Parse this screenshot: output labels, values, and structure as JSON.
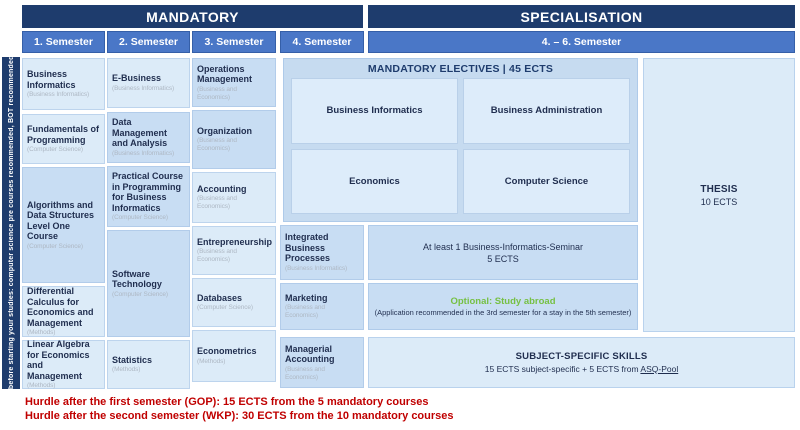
{
  "headers": {
    "mandatory": "MANDATORY",
    "specialisation": "SPECIALISATION"
  },
  "semesters": [
    "1. Semester",
    "2. Semester",
    "3. Semester",
    "4. Semester",
    "4. – 6. Semester"
  ],
  "sidebar_note": "... before starting your studies: computer science pre courses recommended, BOT recommended...",
  "courses": {
    "sem1": [
      {
        "title": "Business Informatics",
        "category": "(Business Informatics)"
      },
      {
        "title": "Fundamentals of Programming",
        "category": "(Computer Science)"
      },
      {
        "title": "Algorithms and Data Structures Level One Course",
        "category": "(Computer Science)"
      },
      {
        "title": "Differential Calculus for Economics and Management",
        "category": "(Methods)"
      },
      {
        "title": "Linear Algebra for Economics and Management",
        "category": "(Methods)"
      }
    ],
    "sem2": [
      {
        "title": "E-Business",
        "category": "(Business Informatics)"
      },
      {
        "title": "Data Management and Analysis",
        "category": "(Business Informatics)"
      },
      {
        "title": "Practical Course in Programming for Business Informatics",
        "category": "(Computer Science)"
      },
      {
        "title": "Software Technology",
        "category": "(Computer Science)"
      },
      {
        "title": "Statistics",
        "category": "(Methods)"
      }
    ],
    "sem3": [
      {
        "title": "Operations Management",
        "category": "(Business and Economics)"
      },
      {
        "title": "Organization",
        "category": "(Business and Economics)"
      },
      {
        "title": "Accounting",
        "category": "(Business and Economics)"
      },
      {
        "title": "Entrepreneurship",
        "category": "(Business and Economics)"
      },
      {
        "title": "Databases",
        "category": "(Computer Science)"
      },
      {
        "title": "Econometrics",
        "category": "(Methods)"
      }
    ],
    "sem4": [
      {
        "title": "Integrated Business Processes",
        "category": "(Business Informatics)"
      },
      {
        "title": "Marketing",
        "category": "(Business and Economics)"
      },
      {
        "title": "Managerial Accounting",
        "category": "(Business and Economics)"
      }
    ]
  },
  "specialisation": {
    "electives_title": "MANDATORY ELECTIVES | 45 ECTS",
    "electives": [
      "Business Informatics",
      "Business Administration",
      "Economics",
      "Computer Science"
    ],
    "seminar": {
      "line1": "At least 1 Business-Informatics-Seminar",
      "line2": "5 ECTS"
    },
    "abroad": {
      "title": "Optional: Study abroad",
      "note": "(Application recommended in the 3rd semester for a stay in the 5th semester)"
    },
    "skills": {
      "title": "SUBJECT-SPECIFIC SKILLS",
      "line_prefix": "15 ECTS subject-specific + 5 ECTS from ",
      "link": "ASQ-Pool"
    },
    "thesis": {
      "title": "THESIS",
      "ects": "10 ECTS"
    }
  },
  "hurdles": [
    "Hurdle after the first semester (GOP): 15 ECTS from the 5 mandatory courses",
    "Hurdle after the second semester (WKP): 30 ECTS from the 10 mandatory courses"
  ],
  "colors": {
    "navy": "#1e3c6d",
    "semester_blue": "#4a77c7",
    "cell_light": "#dcebf8",
    "cell_medium": "#c8ddf3",
    "hurdle_red": "#c00000",
    "abroad_green": "#76c043"
  }
}
